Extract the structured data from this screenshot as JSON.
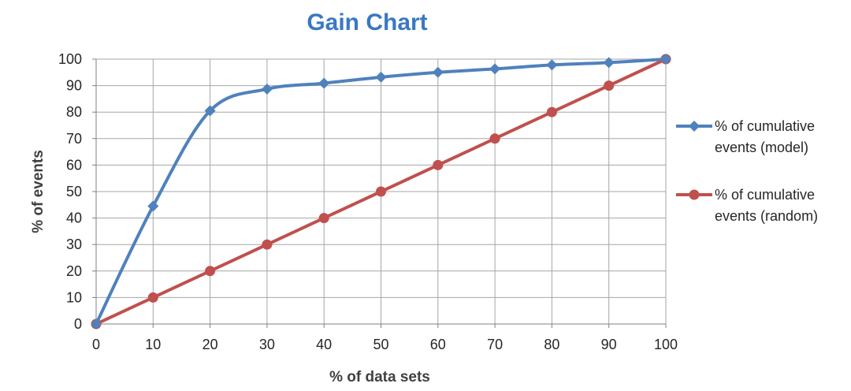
{
  "chart_data": {
    "type": "line",
    "title": "Gain Chart",
    "xlabel": "% of data sets",
    "ylabel": "% of events",
    "x": [
      0,
      10,
      20,
      30,
      40,
      50,
      60,
      70,
      80,
      90,
      100
    ],
    "xlim": [
      0,
      100
    ],
    "ylim": [
      0,
      100
    ],
    "x_ticks": [
      "0",
      "10",
      "20",
      "30",
      "40",
      "50",
      "60",
      "70",
      "80",
      "90",
      "100"
    ],
    "y_ticks": [
      "0",
      "10",
      "20",
      "30",
      "40",
      "50",
      "60",
      "70",
      "80",
      "90",
      "100"
    ],
    "grid": true,
    "legend_position": "right",
    "series": [
      {
        "name": "% of cumulative events (model)",
        "legend_lines": [
          "% of cumulative",
          "events (model)"
        ],
        "values": [
          0,
          44.5,
          80.5,
          88.7,
          90.9,
          93.2,
          95,
          96.3,
          97.8,
          98.7,
          100
        ],
        "color": "#4F81BD",
        "marker": "diamond",
        "smooth": true
      },
      {
        "name": "% of cumulative events (random)",
        "legend_lines": [
          "% of cumulative",
          "events (random)"
        ],
        "values": [
          0,
          10,
          20,
          30,
          40,
          50,
          60,
          70,
          80,
          90,
          100
        ],
        "color": "#C0504D",
        "marker": "circle",
        "smooth": false
      }
    ]
  },
  "colors": {
    "title": "#3A78C2",
    "grid": "#A6A6A6",
    "axis": "#808080"
  }
}
